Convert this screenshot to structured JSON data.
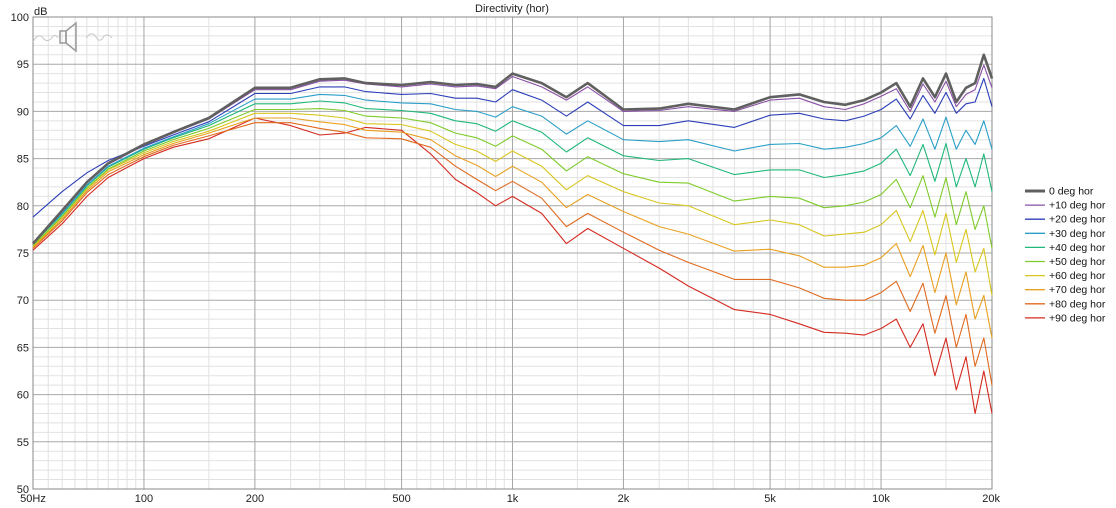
{
  "chart_data": {
    "type": "line",
    "title": "Directivity (hor)",
    "ylabel": "dB",
    "xscale": "log",
    "xlim": [
      50,
      20000
    ],
    "ylim": [
      50,
      100
    ],
    "y_ticks": [
      50,
      55,
      60,
      65,
      70,
      75,
      80,
      85,
      90,
      95,
      100
    ],
    "x_ticks": [
      {
        "value": 50,
        "label": "50Hz"
      },
      {
        "value": 100,
        "label": "100"
      },
      {
        "value": 200,
        "label": "200"
      },
      {
        "value": 500,
        "label": "500"
      },
      {
        "value": 1000,
        "label": "1k"
      },
      {
        "value": 2000,
        "label": "2k"
      },
      {
        "value": 5000,
        "label": "5k"
      },
      {
        "value": 10000,
        "label": "10k"
      },
      {
        "value": 20000,
        "label": "20k"
      }
    ],
    "grid": true,
    "legend_position": "right",
    "speaker_icon": "speaker-icon",
    "series": [
      {
        "name": "0 deg hor",
        "color": "#606060",
        "x": [
          50,
          60,
          70,
          80,
          100,
          120,
          150,
          200,
          250,
          300,
          350,
          400,
          500,
          600,
          700,
          800,
          900,
          1000,
          1200,
          1400,
          1600,
          2000,
          2500,
          3000,
          4000,
          5000,
          6000,
          7000,
          8000,
          9000,
          10000,
          11000,
          12000,
          13000,
          14000,
          15000,
          16000,
          17000,
          18000,
          19000,
          20000
        ],
        "y": [
          76,
          79.5,
          82.5,
          84.5,
          86.5,
          87.8,
          89.3,
          92.5,
          92.5,
          93.4,
          93.5,
          93.0,
          92.8,
          93.1,
          92.8,
          92.9,
          92.6,
          94.0,
          93.0,
          91.5,
          93.0,
          90.2,
          90.3,
          90.8,
          90.2,
          91.5,
          91.8,
          91.0,
          90.7,
          91.2,
          92.0,
          93.0,
          90.5,
          93.5,
          91.5,
          94.0,
          91.0,
          92.5,
          93.0,
          96.0,
          93.5
        ]
      },
      {
        "name": "+10 deg hor",
        "color": "#8a4fa6",
        "x": [
          50,
          60,
          70,
          80,
          100,
          120,
          150,
          200,
          250,
          300,
          350,
          400,
          500,
          600,
          700,
          800,
          900,
          1000,
          1200,
          1400,
          1600,
          2000,
          2500,
          3000,
          4000,
          5000,
          6000,
          7000,
          8000,
          9000,
          10000,
          11000,
          12000,
          13000,
          14000,
          15000,
          16000,
          17000,
          18000,
          19000,
          20000
        ],
        "y": [
          76,
          79.4,
          82.4,
          84.4,
          86.4,
          87.7,
          89.2,
          92.3,
          92.3,
          93.2,
          93.3,
          92.9,
          92.6,
          92.9,
          92.6,
          92.7,
          92.4,
          93.7,
          92.6,
          91.2,
          92.6,
          90.0,
          90.1,
          90.5,
          90.0,
          91.2,
          91.4,
          90.5,
          90.2,
          90.8,
          91.6,
          92.4,
          90.0,
          92.9,
          91.0,
          93.2,
          90.5,
          91.8,
          92.3,
          94.9,
          92.5
        ]
      },
      {
        "name": "+20 deg hor",
        "color": "#2c3fb8",
        "x": [
          50,
          60,
          70,
          80,
          100,
          120,
          150,
          200,
          250,
          300,
          350,
          400,
          500,
          600,
          700,
          800,
          900,
          1000,
          1200,
          1400,
          1600,
          2000,
          2500,
          3000,
          4000,
          5000,
          6000,
          7000,
          8000,
          9000,
          10000,
          11000,
          12000,
          13000,
          14000,
          15000,
          16000,
          17000,
          18000,
          19000,
          20000
        ],
        "y": [
          78.8,
          81.5,
          83.5,
          84.8,
          86.3,
          87.5,
          88.9,
          91.9,
          91.9,
          92.6,
          92.6,
          92.1,
          91.8,
          91.9,
          91.4,
          91.4,
          91.0,
          92.3,
          91.2,
          89.5,
          91.0,
          88.5,
          88.5,
          89.0,
          88.3,
          89.6,
          89.8,
          89.2,
          89.0,
          89.5,
          90.2,
          91.3,
          89.2,
          91.7,
          89.8,
          92.0,
          89.8,
          90.8,
          91.0,
          93.5,
          90.5
        ]
      },
      {
        "name": "+30 deg hor",
        "color": "#2a9fc8",
        "x": [
          50,
          60,
          70,
          80,
          100,
          120,
          150,
          200,
          250,
          300,
          350,
          400,
          500,
          600,
          700,
          800,
          900,
          1000,
          1200,
          1400,
          1600,
          2000,
          2500,
          3000,
          4000,
          5000,
          6000,
          7000,
          8000,
          9000,
          10000,
          11000,
          12000,
          13000,
          14000,
          15000,
          16000,
          17000,
          18000,
          19000,
          20000
        ],
        "y": [
          76,
          79.2,
          82.2,
          84.2,
          86.1,
          87.3,
          88.7,
          91.3,
          91.3,
          91.8,
          91.7,
          91.2,
          90.9,
          90.8,
          90.2,
          90.0,
          89.4,
          90.5,
          89.5,
          87.6,
          89.0,
          87.0,
          86.8,
          87.0,
          85.8,
          86.5,
          86.6,
          86.0,
          86.2,
          86.6,
          87.2,
          88.5,
          86.3,
          89.2,
          86.0,
          89.4,
          86.0,
          88.0,
          86.5,
          89.0,
          86.0
        ]
      },
      {
        "name": "+40 deg hor",
        "color": "#1fb87a",
        "x": [
          50,
          60,
          70,
          80,
          100,
          120,
          150,
          200,
          250,
          300,
          350,
          400,
          500,
          600,
          700,
          800,
          900,
          1000,
          1200,
          1400,
          1600,
          2000,
          2500,
          3000,
          4000,
          5000,
          6000,
          7000,
          8000,
          9000,
          10000,
          11000,
          12000,
          13000,
          14000,
          15000,
          16000,
          17000,
          18000,
          19000,
          20000
        ],
        "y": [
          76,
          79.1,
          82.1,
          84.1,
          86.0,
          87.2,
          88.5,
          90.8,
          90.8,
          91.1,
          90.9,
          90.3,
          90.1,
          89.8,
          89.0,
          88.7,
          87.9,
          89.0,
          87.8,
          85.7,
          87.2,
          85.3,
          84.8,
          85.0,
          83.3,
          83.8,
          83.8,
          83.0,
          83.3,
          83.7,
          84.5,
          86.0,
          83.2,
          86.5,
          82.6,
          86.6,
          82.0,
          85.0,
          82.0,
          85.5,
          81.5
        ]
      },
      {
        "name": "+50 deg hor",
        "color": "#7ecb2a",
        "x": [
          50,
          60,
          70,
          80,
          100,
          120,
          150,
          200,
          250,
          300,
          350,
          400,
          500,
          600,
          700,
          800,
          900,
          1000,
          1200,
          1400,
          1600,
          2000,
          2500,
          3000,
          4000,
          5000,
          6000,
          7000,
          8000,
          9000,
          10000,
          11000,
          12000,
          13000,
          14000,
          15000,
          16000,
          17000,
          18000,
          19000,
          20000
        ],
        "y": [
          75.8,
          78.9,
          81.9,
          83.9,
          85.8,
          87.0,
          88.2,
          90.2,
          90.2,
          90.3,
          90.1,
          89.5,
          89.3,
          88.8,
          87.7,
          87.2,
          86.3,
          87.4,
          86.0,
          83.7,
          85.2,
          83.4,
          82.5,
          82.4,
          80.5,
          81.0,
          80.8,
          79.8,
          80.0,
          80.4,
          81.2,
          82.8,
          79.8,
          83.2,
          78.8,
          83.0,
          78.0,
          81.5,
          77.5,
          80.0,
          75.5
        ]
      },
      {
        "name": "+60 deg hor",
        "color": "#d9c61f",
        "x": [
          50,
          60,
          70,
          80,
          100,
          120,
          150,
          200,
          250,
          300,
          350,
          400,
          500,
          600,
          700,
          800,
          900,
          1000,
          1200,
          1400,
          1600,
          2000,
          2500,
          3000,
          4000,
          5000,
          6000,
          7000,
          8000,
          9000,
          10000,
          11000,
          12000,
          13000,
          14000,
          15000,
          16000,
          17000,
          18000,
          19000,
          20000
        ],
        "y": [
          75.7,
          78.8,
          81.8,
          83.8,
          85.6,
          86.8,
          87.9,
          89.8,
          89.8,
          89.6,
          89.3,
          88.7,
          88.6,
          87.9,
          86.5,
          85.8,
          84.7,
          85.8,
          84.2,
          81.7,
          83.2,
          81.5,
          80.3,
          80.0,
          78.0,
          78.5,
          78.0,
          76.8,
          77.0,
          77.2,
          78.0,
          79.5,
          76.2,
          79.5,
          74.8,
          79.2,
          74.0,
          77.5,
          73.0,
          75.5,
          70.5
        ]
      },
      {
        "name": "+70 deg hor",
        "color": "#e8a020",
        "x": [
          50,
          60,
          70,
          80,
          100,
          120,
          150,
          200,
          250,
          300,
          350,
          400,
          500,
          600,
          700,
          800,
          900,
          1000,
          1200,
          1400,
          1600,
          2000,
          2500,
          3000,
          4000,
          5000,
          6000,
          7000,
          8000,
          9000,
          10000,
          11000,
          12000,
          13000,
          14000,
          15000,
          16000,
          17000,
          18000,
          19000,
          20000
        ],
        "y": [
          75.6,
          78.6,
          81.6,
          83.6,
          85.4,
          86.6,
          87.7,
          89.3,
          89.3,
          88.9,
          88.6,
          88.0,
          87.8,
          87.0,
          85.3,
          84.3,
          83.1,
          84.2,
          82.5,
          79.8,
          81.2,
          79.4,
          77.8,
          77.0,
          75.2,
          75.4,
          74.7,
          73.5,
          73.5,
          73.7,
          74.5,
          76.0,
          72.5,
          75.8,
          70.8,
          75.0,
          69.5,
          73.0,
          68.0,
          70.5,
          66.0
        ]
      },
      {
        "name": "+80 deg hor",
        "color": "#e06a1f",
        "x": [
          50,
          60,
          70,
          80,
          100,
          120,
          150,
          200,
          250,
          300,
          350,
          400,
          500,
          600,
          700,
          800,
          900,
          1000,
          1200,
          1400,
          1600,
          2000,
          2500,
          3000,
          4000,
          5000,
          6000,
          7000,
          8000,
          9000,
          10000,
          11000,
          12000,
          13000,
          14000,
          15000,
          16000,
          17000,
          18000,
          19000,
          20000
        ],
        "y": [
          75.5,
          78.4,
          81.4,
          83.3,
          85.2,
          86.4,
          87.4,
          88.8,
          88.8,
          88.2,
          87.8,
          87.2,
          87.1,
          86.2,
          84.2,
          82.8,
          81.6,
          82.6,
          80.8,
          77.8,
          79.2,
          77.2,
          75.3,
          74.0,
          72.2,
          72.2,
          71.3,
          70.2,
          70.0,
          70.0,
          70.8,
          72.0,
          68.8,
          71.8,
          66.5,
          70.5,
          65.0,
          68.5,
          63.0,
          66.0,
          61.0
        ]
      },
      {
        "name": "+90 deg hor",
        "color": "#d42a1f",
        "x": [
          50,
          60,
          70,
          80,
          100,
          120,
          150,
          200,
          250,
          300,
          350,
          400,
          500,
          600,
          700,
          800,
          900,
          1000,
          1200,
          1400,
          1600,
          2000,
          2500,
          3000,
          4000,
          5000,
          6000,
          7000,
          8000,
          9000,
          10000,
          11000,
          12000,
          13000,
          14000,
          15000,
          16000,
          17000,
          18000,
          19000,
          20000
        ],
        "y": [
          75.3,
          78.1,
          81.0,
          83.0,
          85.0,
          86.2,
          87.1,
          89.3,
          88.5,
          87.5,
          87.7,
          88.3,
          88.0,
          85.5,
          82.8,
          81.4,
          80.0,
          81.0,
          79.2,
          76.0,
          77.6,
          75.5,
          73.4,
          71.5,
          69.0,
          68.5,
          67.5,
          66.6,
          66.5,
          66.3,
          67.0,
          68.0,
          65.0,
          67.5,
          62.0,
          66.0,
          60.5,
          64.0,
          58.0,
          62.5,
          58.0
        ]
      }
    ]
  }
}
